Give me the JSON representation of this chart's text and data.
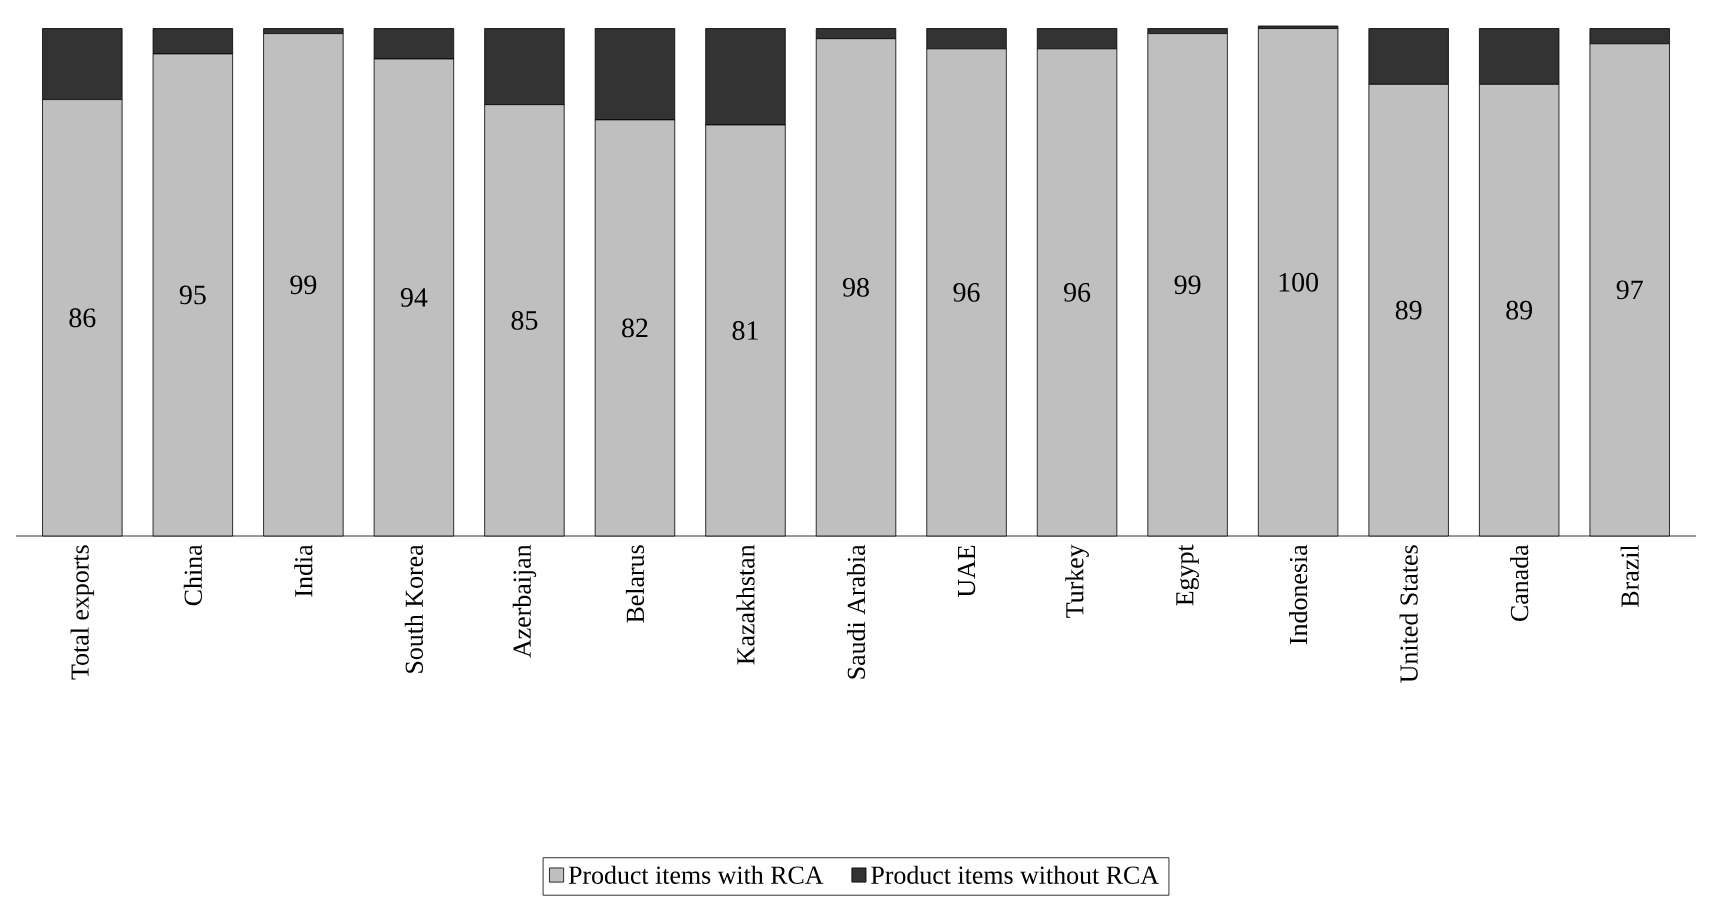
{
  "chart_data": {
    "type": "bar",
    "stacked": true,
    "categories": [
      "Total exports",
      "China",
      "India",
      "South Korea",
      "Azerbaijan",
      "Belarus",
      "Kazakhstan",
      "Saudi Arabia",
      "UAE",
      "Turkey",
      "Egypt",
      "Indonesia",
      "United States",
      "Canada",
      "Brazil"
    ],
    "series": [
      {
        "name": "Product items with RCA",
        "color": "#bfbfbf",
        "values": [
          86,
          95,
          99,
          94,
          85,
          82,
          81,
          98,
          96,
          96,
          99,
          100,
          89,
          89,
          97
        ],
        "value_labels": [
          "86",
          "95",
          "99",
          "94",
          "85",
          "82",
          "81",
          "98",
          "96",
          "96",
          "99",
          "100",
          "89",
          "89",
          "97"
        ]
      },
      {
        "name": "Product items without RCA",
        "color": "#333333",
        "values": [
          14,
          5,
          1,
          6,
          15,
          18,
          19,
          2,
          4,
          4,
          1,
          0.5,
          11,
          11,
          3
        ]
      }
    ],
    "tick_labels": "x",
    "legend": "bottom"
  }
}
